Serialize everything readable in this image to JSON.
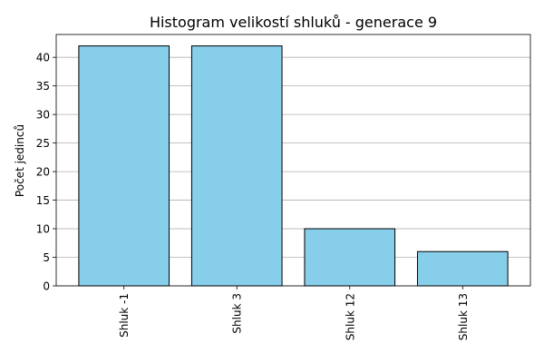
{
  "chart_data": {
    "type": "bar",
    "title": "Histogram velikostí shluků - generace 9",
    "xlabel": "",
    "ylabel": "Počet jedinců",
    "categories": [
      "Shluk -1",
      "Shluk 3",
      "Shluk 12",
      "Shluk 13"
    ],
    "values": [
      42,
      42,
      10,
      6
    ],
    "ylim": [
      0,
      44
    ],
    "yticks": [
      0,
      5,
      10,
      15,
      20,
      25,
      30,
      35,
      40
    ],
    "grid": "horizontal",
    "colors": {
      "bar_fill": "#87ceeb",
      "bar_edge": "#000000",
      "grid": "#b0b0b0"
    }
  }
}
